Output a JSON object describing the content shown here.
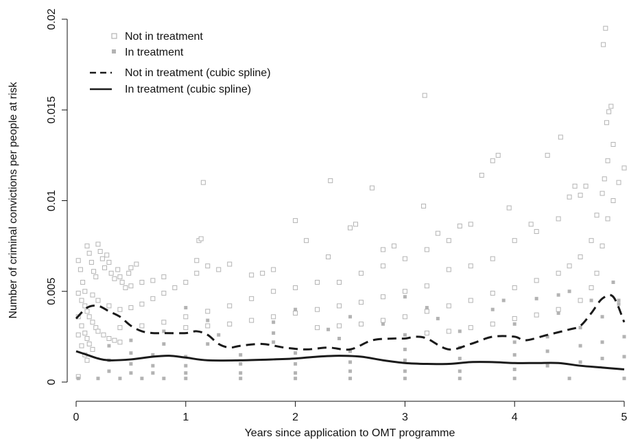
{
  "chart_data": {
    "type": "scatter",
    "title": "",
    "xlabel": "Years since application to OMT programme",
    "ylabel": "Number of criminal convictions per people at risk",
    "xlim": [
      0,
      5
    ],
    "ylim": [
      0,
      0.02
    ],
    "x_ticks": [
      0,
      1,
      2,
      3,
      4,
      5
    ],
    "x_tick_labels": [
      "0",
      "1",
      "2",
      "3",
      "4",
      "5"
    ],
    "y_ticks": [
      0,
      0.005,
      0.01,
      0.015,
      0.02
    ],
    "y_tick_labels": [
      "0",
      "0.005",
      "0.01",
      "0.015",
      "0.02"
    ],
    "grid": false,
    "legend_position": "top-left",
    "colors": {
      "scatter": "#b3b3b3",
      "spline": "#1a1a1a",
      "axis": "#111111"
    },
    "legend": [
      {
        "label": "Not in treatment",
        "marker": "open-square"
      },
      {
        "label": "In treatment",
        "marker": "filled-square"
      },
      {
        "label": "Not in treatment (cubic spline)",
        "marker": "dashed-line"
      },
      {
        "label": "In treatment (cubic spline)",
        "marker": "solid-line"
      }
    ],
    "series": [
      {
        "name": "Not in treatment (cubic spline)",
        "style": "dashed",
        "x": [
          0,
          0.1,
          0.2,
          0.3,
          0.4,
          0.5,
          0.6,
          0.7,
          0.8,
          1.0,
          1.1,
          1.2,
          1.3,
          1.4,
          1.5,
          1.7,
          1.9,
          2.1,
          2.3,
          2.5,
          2.7,
          2.9,
          3.0,
          3.1,
          3.2,
          3.4,
          3.6,
          3.8,
          4.0,
          4.1,
          4.3,
          4.5,
          4.6,
          4.7,
          4.8,
          4.9,
          5.0
        ],
        "y": [
          0.0035,
          0.0041,
          0.0042,
          0.0039,
          0.0036,
          0.0031,
          0.0028,
          0.0027,
          0.0027,
          0.0027,
          0.0028,
          0.0026,
          0.0021,
          0.0019,
          0.002,
          0.0021,
          0.0019,
          0.0018,
          0.0019,
          0.0018,
          0.0023,
          0.0024,
          0.0024,
          0.0025,
          0.0024,
          0.0018,
          0.0021,
          0.0025,
          0.0025,
          0.0023,
          0.0026,
          0.0029,
          0.0031,
          0.0038,
          0.0046,
          0.0047,
          0.0033
        ]
      },
      {
        "name": "In treatment (cubic spline)",
        "style": "solid",
        "x": [
          0,
          0.1,
          0.2,
          0.3,
          0.5,
          0.7,
          0.85,
          1.0,
          1.2,
          1.5,
          1.8,
          2.0,
          2.2,
          2.4,
          2.6,
          2.8,
          3.0,
          3.2,
          3.4,
          3.6,
          3.8,
          4.0,
          4.2,
          4.4,
          4.6,
          4.8,
          5.0
        ],
        "y": [
          0.0017,
          0.0015,
          0.0013,
          0.0012,
          0.00125,
          0.0014,
          0.00145,
          0.00135,
          0.0012,
          0.0012,
          0.00125,
          0.0013,
          0.0014,
          0.00145,
          0.0014,
          0.0012,
          0.00105,
          0.001,
          0.001,
          0.0011,
          0.0011,
          0.00105,
          0.00105,
          0.00105,
          0.0009,
          0.0008,
          0.0007
        ]
      },
      {
        "name": "Not in treatment",
        "marker": "open-square",
        "points": [
          [
            0.02,
            0.0067
          ],
          [
            0.04,
            0.0062
          ],
          [
            0.06,
            0.0055
          ],
          [
            0.08,
            0.005
          ],
          [
            0.1,
            0.0075
          ],
          [
            0.12,
            0.0071
          ],
          [
            0.14,
            0.0066
          ],
          [
            0.16,
            0.0061
          ],
          [
            0.18,
            0.0058
          ],
          [
            0.2,
            0.0076
          ],
          [
            0.22,
            0.0072
          ],
          [
            0.24,
            0.0068
          ],
          [
            0.26,
            0.0063
          ],
          [
            0.28,
            0.007
          ],
          [
            0.3,
            0.0066
          ],
          [
            0.32,
            0.006
          ],
          [
            0.35,
            0.0057
          ],
          [
            0.38,
            0.0062
          ],
          [
            0.4,
            0.0058
          ],
          [
            0.42,
            0.0055
          ],
          [
            0.45,
            0.0052
          ],
          [
            0.48,
            0.006
          ],
          [
            0.5,
            0.0063
          ],
          [
            0.55,
            0.0065
          ],
          [
            0.02,
            0.0049
          ],
          [
            0.05,
            0.0045
          ],
          [
            0.08,
            0.0042
          ],
          [
            0.1,
            0.0039
          ],
          [
            0.12,
            0.0036
          ],
          [
            0.15,
            0.0033
          ],
          [
            0.18,
            0.003
          ],
          [
            0.2,
            0.0028
          ],
          [
            0.25,
            0.0026
          ],
          [
            0.3,
            0.0024
          ],
          [
            0.35,
            0.0023
          ],
          [
            0.4,
            0.0022
          ],
          [
            0.02,
            0.0036
          ],
          [
            0.05,
            0.0031
          ],
          [
            0.08,
            0.0027
          ],
          [
            0.1,
            0.0024
          ],
          [
            0.12,
            0.0021
          ],
          [
            0.15,
            0.0018
          ],
          [
            0.02,
            0.0026
          ],
          [
            0.05,
            0.002
          ],
          [
            0.08,
            0.0015
          ],
          [
            0.02,
            0.0003
          ],
          [
            0.1,
            0.0012
          ],
          [
            0.15,
            0.0048
          ],
          [
            0.2,
            0.0045
          ],
          [
            0.3,
            0.0042
          ],
          [
            0.4,
            0.004
          ],
          [
            0.5,
            0.0041
          ],
          [
            0.6,
            0.0043
          ],
          [
            0.7,
            0.0046
          ],
          [
            0.8,
            0.0049
          ],
          [
            0.9,
            0.0052
          ],
          [
            1.0,
            0.0055
          ],
          [
            1.1,
            0.006
          ],
          [
            1.2,
            0.0064
          ],
          [
            1.3,
            0.0062
          ],
          [
            1.4,
            0.0065
          ],
          [
            0.5,
            0.0053
          ],
          [
            0.6,
            0.0055
          ],
          [
            0.7,
            0.0056
          ],
          [
            0.8,
            0.0058
          ],
          [
            1.12,
            0.0078
          ],
          [
            1.14,
            0.0079
          ],
          [
            1.16,
            0.011
          ],
          [
            1.1,
            0.0067
          ],
          [
            0.4,
            0.003
          ],
          [
            0.6,
            0.0031
          ],
          [
            0.8,
            0.0033
          ],
          [
            1.0,
            0.0036
          ],
          [
            1.2,
            0.0039
          ],
          [
            1.4,
            0.0042
          ],
          [
            1.6,
            0.0046
          ],
          [
            1.8,
            0.005
          ],
          [
            2.0,
            0.0052
          ],
          [
            2.2,
            0.0055
          ],
          [
            2.4,
            0.0055
          ],
          [
            2.6,
            0.006
          ],
          [
            2.8,
            0.0064
          ],
          [
            3.0,
            0.0068
          ],
          [
            3.2,
            0.0073
          ],
          [
            3.4,
            0.0078
          ],
          [
            1.6,
            0.0059
          ],
          [
            1.7,
            0.006
          ],
          [
            1.8,
            0.0062
          ],
          [
            2.0,
            0.0089
          ],
          [
            2.1,
            0.0078
          ],
          [
            2.3,
            0.0069
          ],
          [
            2.32,
            0.0111
          ],
          [
            2.5,
            0.0085
          ],
          [
            2.55,
            0.0087
          ],
          [
            2.7,
            0.0107
          ],
          [
            2.8,
            0.0073
          ],
          [
            2.9,
            0.0075
          ],
          [
            3.18,
            0.0158
          ],
          [
            3.17,
            0.0097
          ],
          [
            3.3,
            0.0082
          ],
          [
            3.5,
            0.0086
          ],
          [
            3.6,
            0.0087
          ],
          [
            3.7,
            0.0114
          ],
          [
            3.8,
            0.0122
          ],
          [
            3.85,
            0.0125
          ],
          [
            3.95,
            0.0096
          ],
          [
            4.15,
            0.0087
          ],
          [
            4.3,
            0.0125
          ],
          [
            4.42,
            0.0135
          ],
          [
            4.5,
            0.0102
          ],
          [
            4.55,
            0.0108
          ],
          [
            4.65,
            0.0108
          ],
          [
            1.0,
            0.003
          ],
          [
            1.2,
            0.0031
          ],
          [
            1.4,
            0.0032
          ],
          [
            1.6,
            0.0034
          ],
          [
            1.8,
            0.0036
          ],
          [
            2.0,
            0.0038
          ],
          [
            2.2,
            0.004
          ],
          [
            2.4,
            0.0042
          ],
          [
            2.6,
            0.0044
          ],
          [
            2.8,
            0.0047
          ],
          [
            3.0,
            0.005
          ],
          [
            3.2,
            0.0053
          ],
          [
            3.4,
            0.0062
          ],
          [
            3.6,
            0.0064
          ],
          [
            3.8,
            0.0068
          ],
          [
            4.0,
            0.0078
          ],
          [
            4.2,
            0.0083
          ],
          [
            4.4,
            0.009
          ],
          [
            4.6,
            0.0103
          ],
          [
            2.2,
            0.003
          ],
          [
            2.4,
            0.0031
          ],
          [
            2.6,
            0.0032
          ],
          [
            2.8,
            0.0034
          ],
          [
            3.0,
            0.0036
          ],
          [
            3.2,
            0.0039
          ],
          [
            3.4,
            0.0042
          ],
          [
            3.6,
            0.0045
          ],
          [
            3.8,
            0.0049
          ],
          [
            4.0,
            0.0052
          ],
          [
            4.2,
            0.0056
          ],
          [
            4.4,
            0.006
          ],
          [
            4.5,
            0.0064
          ],
          [
            4.6,
            0.0069
          ],
          [
            4.7,
            0.0078
          ],
          [
            4.75,
            0.0092
          ],
          [
            4.8,
            0.0104
          ],
          [
            4.82,
            0.0112
          ],
          [
            4.85,
            0.0122
          ],
          [
            4.9,
            0.0131
          ],
          [
            3.2,
            0.0027
          ],
          [
            3.4,
            0.0028
          ],
          [
            3.6,
            0.003
          ],
          [
            3.8,
            0.0032
          ],
          [
            4.0,
            0.0035
          ],
          [
            4.2,
            0.0037
          ],
          [
            4.4,
            0.004
          ],
          [
            4.6,
            0.0045
          ],
          [
            4.7,
            0.0052
          ],
          [
            4.75,
            0.006
          ],
          [
            4.8,
            0.0075
          ],
          [
            4.85,
            0.009
          ],
          [
            4.9,
            0.01
          ],
          [
            4.95,
            0.011
          ],
          [
            5.0,
            0.0118
          ],
          [
            4.81,
            0.0186
          ],
          [
            4.83,
            0.0195
          ],
          [
            4.84,
            0.0143
          ],
          [
            4.86,
            0.0149
          ],
          [
            4.88,
            0.0152
          ]
        ]
      },
      {
        "name": "In treatment",
        "marker": "filled-square",
        "points": [
          [
            0.02,
            0.0002
          ],
          [
            0.2,
            0.0002
          ],
          [
            0.4,
            0.0002
          ],
          [
            0.6,
            0.0002
          ],
          [
            0.8,
            0.0002
          ],
          [
            1.0,
            0.0002
          ],
          [
            1.5,
            0.0002
          ],
          [
            2.0,
            0.0002
          ],
          [
            2.5,
            0.0002
          ],
          [
            3.0,
            0.0002
          ],
          [
            3.5,
            0.0002
          ],
          [
            4.0,
            0.0002
          ],
          [
            4.5,
            0.0002
          ],
          [
            5.0,
            0.0002
          ],
          [
            0.3,
            0.0006
          ],
          [
            0.5,
            0.0005
          ],
          [
            0.7,
            0.0005
          ],
          [
            1.0,
            0.0005
          ],
          [
            1.5,
            0.0005
          ],
          [
            2.0,
            0.0005
          ],
          [
            2.5,
            0.0006
          ],
          [
            3.0,
            0.0006
          ],
          [
            3.5,
            0.0006
          ],
          [
            4.0,
            0.0007
          ],
          [
            4.3,
            0.0009
          ],
          [
            4.6,
            0.0011
          ],
          [
            4.8,
            0.0013
          ],
          [
            5.0,
            0.0014
          ],
          [
            0.3,
            0.0012
          ],
          [
            0.5,
            0.001
          ],
          [
            0.7,
            0.0009
          ],
          [
            1.0,
            0.0009
          ],
          [
            1.5,
            0.001
          ],
          [
            2.0,
            0.001
          ],
          [
            2.5,
            0.0011
          ],
          [
            3.0,
            0.0012
          ],
          [
            3.5,
            0.0013
          ],
          [
            4.0,
            0.0015
          ],
          [
            4.3,
            0.0017
          ],
          [
            4.6,
            0.002
          ],
          [
            4.8,
            0.0022
          ],
          [
            5.0,
            0.0025
          ],
          [
            0.3,
            0.002
          ],
          [
            0.5,
            0.0016
          ],
          [
            0.7,
            0.0015
          ],
          [
            1.0,
            0.0014
          ],
          [
            1.5,
            0.0015
          ],
          [
            2.0,
            0.0016
          ],
          [
            2.5,
            0.0017
          ],
          [
            3.0,
            0.0018
          ],
          [
            3.5,
            0.0019
          ],
          [
            4.0,
            0.0022
          ],
          [
            4.3,
            0.0025
          ],
          [
            4.6,
            0.003
          ],
          [
            4.8,
            0.0036
          ],
          [
            4.95,
            0.0045
          ],
          [
            0.5,
            0.0023
          ],
          [
            0.8,
            0.0021
          ],
          [
            1.2,
            0.0021
          ],
          [
            1.8,
            0.0022
          ],
          [
            2.4,
            0.0024
          ],
          [
            3.0,
            0.0026
          ],
          [
            3.5,
            0.0028
          ],
          [
            4.0,
            0.0032
          ],
          [
            4.4,
            0.0038
          ],
          [
            4.7,
            0.0045
          ],
          [
            4.9,
            0.0055
          ],
          [
            0.8,
            0.0028
          ],
          [
            1.3,
            0.0026
          ],
          [
            1.8,
            0.0027
          ],
          [
            2.3,
            0.0029
          ],
          [
            2.8,
            0.0032
          ],
          [
            3.3,
            0.0035
          ],
          [
            3.8,
            0.004
          ],
          [
            4.2,
            0.0046
          ],
          [
            4.5,
            0.005
          ],
          [
            1.2,
            0.0034
          ],
          [
            1.8,
            0.0033
          ],
          [
            2.5,
            0.0036
          ],
          [
            3.2,
            0.0041
          ],
          [
            3.9,
            0.0045
          ],
          [
            4.4,
            0.0048
          ],
          [
            4.95,
            0.0043
          ],
          [
            1.0,
            0.0041
          ],
          [
            2.0,
            0.004
          ],
          [
            3.0,
            0.0047
          ]
        ]
      }
    ]
  }
}
